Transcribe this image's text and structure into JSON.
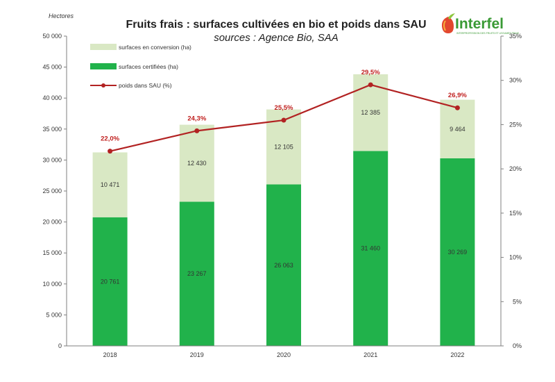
{
  "chart_data": {
    "type": "bar",
    "title": "Fruits frais : surfaces cultivées en bio et poids dans SAU",
    "subtitle": "sources : Agence Bio, SAA",
    "ylabel": "Hectores",
    "categories": [
      "2018",
      "2019",
      "2020",
      "2021",
      "2022"
    ],
    "ylim": [
      0,
      50000
    ],
    "y_ticks": [
      "0",
      "5 000",
      "10 000",
      "15 000",
      "20 000",
      "25 000",
      "30 000",
      "35 000",
      "40 000",
      "45 000",
      "50 000"
    ],
    "y2lim": [
      0,
      0.35
    ],
    "y2_ticks": [
      "0%",
      "5%",
      "10%",
      "15%",
      "20%",
      "25%",
      "30%",
      "35%"
    ],
    "stacked": true,
    "series": [
      {
        "name": "surfaces certifiées (ha)",
        "kind": "bar",
        "color": "#21b24b",
        "values": [
          20761,
          23267,
          26063,
          31460,
          30269
        ],
        "labels": [
          "20 761",
          "23 267",
          "26 063",
          "31 460",
          "30 269"
        ]
      },
      {
        "name": "surfaces en conversion (ha)",
        "kind": "bar",
        "color": "#d9e8c4",
        "values": [
          10471,
          12430,
          12105,
          12385,
          9464
        ],
        "labels": [
          "10 471",
          "12 430",
          "12 105",
          "12 385",
          "9 464"
        ]
      },
      {
        "name": "poids dans SAU (%)",
        "kind": "line",
        "axis": "right",
        "color": "#b22222",
        "values": [
          0.22,
          0.243,
          0.255,
          0.295,
          0.269
        ],
        "labels": [
          "22,0%",
          "24,3%",
          "25,5%",
          "29,5%",
          "26,9%"
        ]
      }
    ],
    "legend_position": "top-left",
    "grid": false
  },
  "logo": {
    "text": "Interfel",
    "tagline": "INTERPROFESSION DES FRUITS ET LEGUMES FRAIS"
  }
}
